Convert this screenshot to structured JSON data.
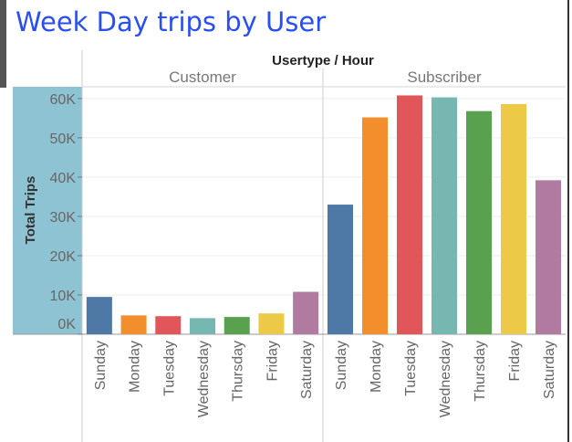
{
  "page": {
    "title": "Week Day trips by User"
  },
  "chart_data": {
    "type": "bar",
    "header": "Usertype / Hour",
    "ylabel": "Total Trips",
    "ylim": [
      0,
      63000
    ],
    "yticks": [
      0,
      10000,
      20000,
      30000,
      40000,
      50000,
      60000
    ],
    "ytick_labels": [
      "0K",
      "10K",
      "20K",
      "30K",
      "40K",
      "50K",
      "60K"
    ],
    "grid": true,
    "categories": [
      "Sunday",
      "Monday",
      "Tuesday",
      "Wednesday",
      "Thursday",
      "Friday",
      "Saturday"
    ],
    "colors": [
      "#4e79a7",
      "#f28e2b",
      "#e15759",
      "#76b7b2",
      "#59a14f",
      "#edc948",
      "#b07aa1"
    ],
    "panes": [
      {
        "name": "Customer",
        "values": [
          9500,
          4800,
          4600,
          4100,
          4400,
          5300,
          10800
        ]
      },
      {
        "name": "Subscriber",
        "values": [
          33000,
          55200,
          60800,
          60300,
          56800,
          58600,
          39200
        ]
      }
    ]
  }
}
